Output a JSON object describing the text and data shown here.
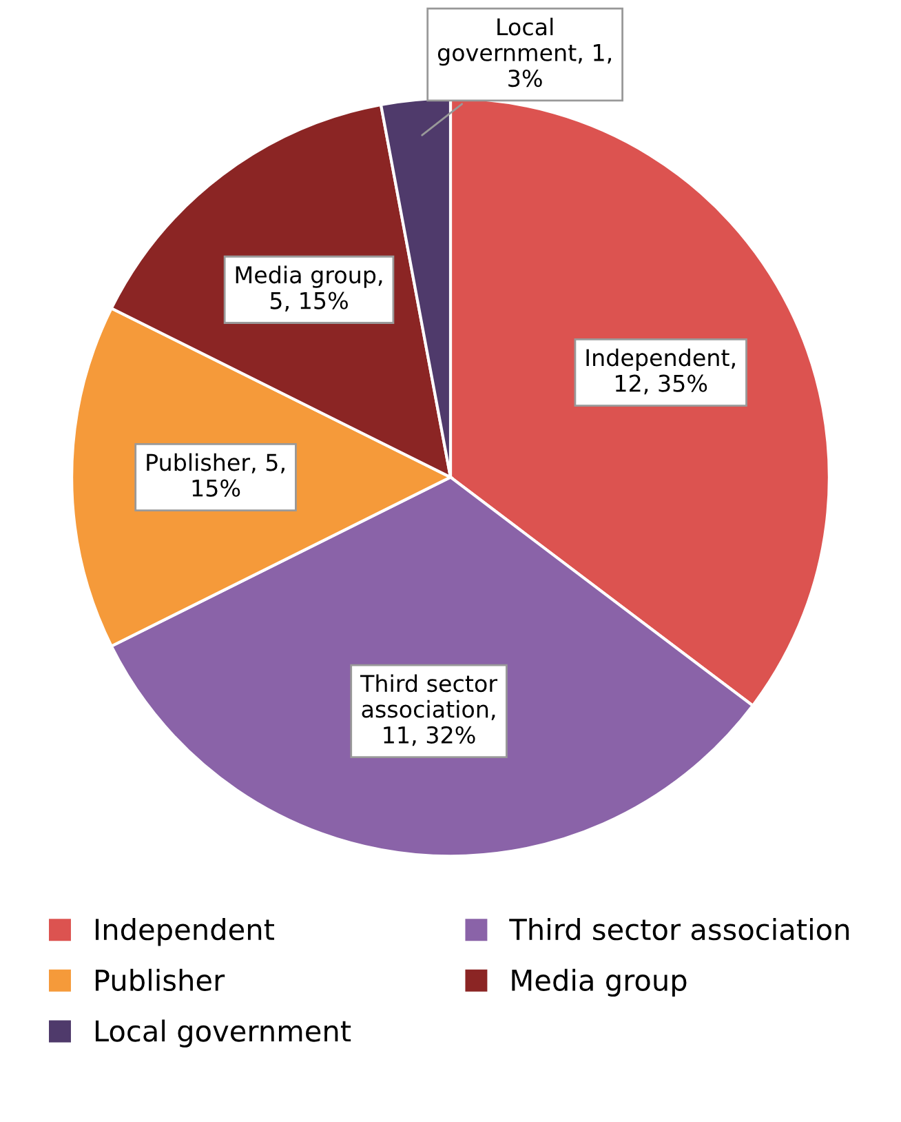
{
  "chart_data": {
    "type": "pie",
    "categories": [
      "Independent",
      "Third sector association",
      "Publisher",
      "Media group",
      "Local government"
    ],
    "values": [
      12,
      11,
      5,
      5,
      1
    ],
    "colors": [
      "#dc5350",
      "#8a63a8",
      "#f59a3a",
      "#8b2524",
      "#4f3a6b"
    ],
    "value_labels": [
      "Independent, 12, 35%",
      "Third sector association, 11, 32%",
      "Publisher, 5, 15%",
      "Media group, 5, 15%",
      "Local government, 1, 3%"
    ],
    "legend": "bottom"
  }
}
